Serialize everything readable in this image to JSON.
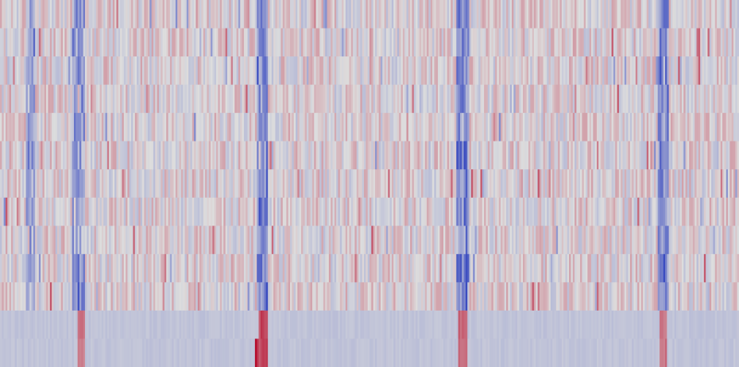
{
  "chart_data": {
    "type": "heatmap",
    "title": "",
    "xlabel": "",
    "ylabel": "",
    "colormap": "coolwarm",
    "color_low": "#3b4cc0",
    "color_mid": "#dddddd",
    "color_high": "#b40426",
    "value_range": [
      -1,
      1
    ],
    "n_rows": 13,
    "n_cols": 400,
    "grid": false,
    "legend": "none",
    "row_bands": [
      {
        "rows": [
          0,
          10
        ],
        "baseline": 0.03,
        "noise": 0.25,
        "background": "#dcdcdc"
      },
      {
        "rows": [
          11,
          12
        ],
        "baseline": -0.18,
        "noise": 0.04,
        "background": "#cfdbe8"
      }
    ],
    "blue_stripes": [
      {
        "col": 15,
        "width": 3,
        "strength": -0.55
      },
      {
        "col": 40,
        "width": 5,
        "strength": -0.6
      },
      {
        "col": 140,
        "width": 4,
        "strength": -0.8
      },
      {
        "col": 248,
        "width": 5,
        "strength": -0.75
      },
      {
        "col": 357,
        "width": 4,
        "strength": -0.75
      }
    ],
    "red_hotspots": [
      {
        "rows": [
          11,
          12
        ],
        "col": 42,
        "width": 4,
        "strength": 0.55
      },
      {
        "rows": [
          11,
          12
        ],
        "col": 140,
        "width": 5,
        "strength": 0.8
      },
      {
        "rows": [
          12,
          12
        ],
        "col": 138,
        "width": 2,
        "strength": 1.0
      },
      {
        "rows": [
          11,
          12
        ],
        "col": 248,
        "width": 5,
        "strength": 0.65
      },
      {
        "rows": [
          11,
          12
        ],
        "col": 357,
        "width": 4,
        "strength": 0.6
      }
    ]
  }
}
